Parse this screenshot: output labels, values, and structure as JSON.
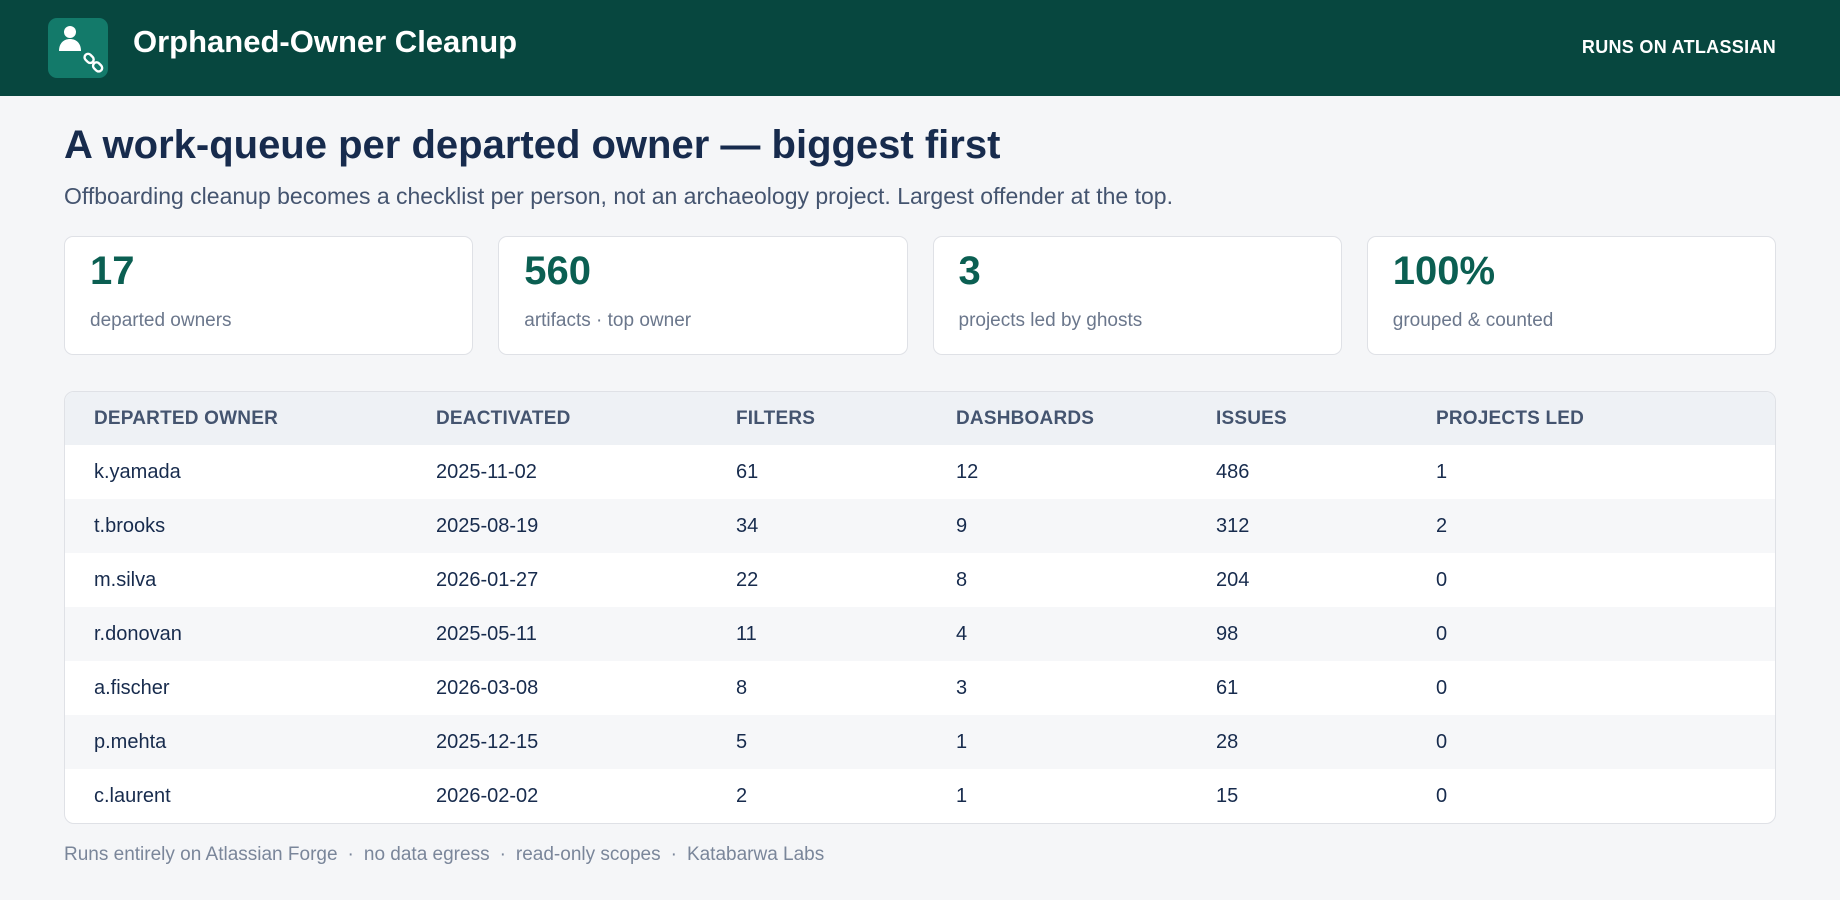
{
  "app": {
    "title": "Orphaned-Owner Cleanup",
    "logo_icon": "person-chain-link-icon",
    "runs_on": "RUNS ON ATLASSIAN"
  },
  "page": {
    "headline": "A work-queue per departed owner — biggest first",
    "subhead": "Offboarding cleanup becomes a checklist per person, not an archaeology project. Largest offender at the top."
  },
  "stats": [
    {
      "value": "17",
      "label": "departed owners"
    },
    {
      "value": "560",
      "label": "artifacts · top owner"
    },
    {
      "value": "3",
      "label": "projects led by ghosts"
    },
    {
      "value": "100%",
      "label": "grouped & counted"
    }
  ],
  "table": {
    "columns": [
      "DEPARTED OWNER",
      "DEACTIVATED",
      "FILTERS",
      "DASHBOARDS",
      "ISSUES",
      "PROJECTS LED"
    ],
    "rows": [
      [
        "k.yamada",
        "2025-11-02",
        "61",
        "12",
        "486",
        "1"
      ],
      [
        "t.brooks",
        "2025-08-19",
        "34",
        "9",
        "312",
        "2"
      ],
      [
        "m.silva",
        "2026-01-27",
        "22",
        "8",
        "204",
        "0"
      ],
      [
        "r.donovan",
        "2025-05-11",
        "11",
        "4",
        "98",
        "0"
      ],
      [
        "a.fischer",
        "2026-03-08",
        "8",
        "3",
        "61",
        "0"
      ],
      [
        "p.mehta",
        "2025-12-15",
        "5",
        "1",
        "28",
        "0"
      ],
      [
        "c.laurent",
        "2026-02-02",
        "2",
        "1",
        "15",
        "0"
      ]
    ]
  },
  "footer": {
    "items": [
      "Runs entirely on Atlassian Forge",
      "no data egress",
      "read-only scopes",
      "Katabarwa Labs"
    ],
    "separator": "·"
  },
  "colors": {
    "topbar": "#07473f",
    "accent": "#0b5f52",
    "logo_bg": "#137a6a"
  }
}
